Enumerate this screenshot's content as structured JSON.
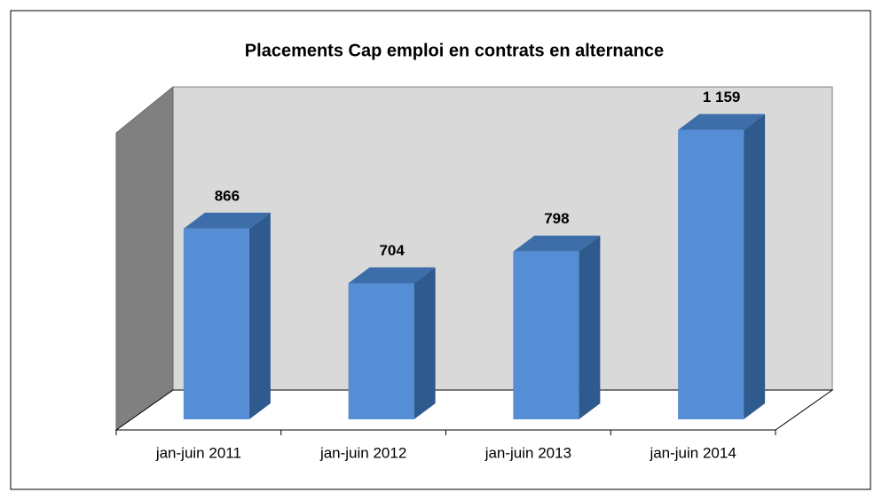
{
  "chart_data": {
    "type": "bar3d",
    "title": "Placements Cap emploi en contrats en alternance",
    "categories": [
      "jan-juin 2011",
      "jan-juin 2012",
      "jan-juin 2013",
      "jan-juin 2014"
    ],
    "values": [
      866,
      704,
      798,
      1159
    ],
    "value_labels": [
      "866",
      "704",
      "798",
      "1 159"
    ],
    "color": "#558ed5",
    "ylim": [
      300,
      1200
    ]
  }
}
